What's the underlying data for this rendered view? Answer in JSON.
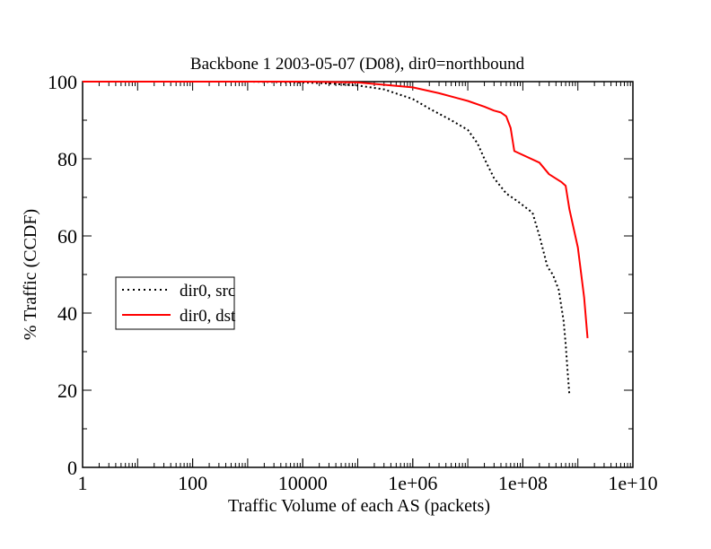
{
  "chart_data": {
    "type": "line",
    "title": "Backbone 1 2003-05-07 (D08), dir0=northbound",
    "xlabel": "Traffic Volume of each AS (packets)",
    "ylabel": "% Traffic (CCDF)",
    "xscale": "log",
    "xlim": [
      1,
      10000000000
    ],
    "ylim": [
      0,
      100
    ],
    "x_ticks": [
      {
        "value": 1,
        "label": "1"
      },
      {
        "value": 100,
        "label": "100"
      },
      {
        "value": 10000,
        "label": "10000"
      },
      {
        "value": 1000000,
        "label": "1e+06"
      },
      {
        "value": 100000000,
        "label": "1e+08"
      },
      {
        "value": 10000000000,
        "label": "1e+10"
      }
    ],
    "y_ticks": [
      {
        "value": 0,
        "label": "0"
      },
      {
        "value": 20,
        "label": "20"
      },
      {
        "value": 40,
        "label": "40"
      },
      {
        "value": 60,
        "label": "60"
      },
      {
        "value": 80,
        "label": "80"
      },
      {
        "value": 100,
        "label": "100"
      }
    ],
    "grid": false,
    "legend_position": "left-middle",
    "series": [
      {
        "name": "dir0, src",
        "color": "#000000",
        "style": "dotted",
        "x": [
          1,
          1000,
          10000,
          30000,
          100000,
          300000,
          1000000,
          2000000,
          5000000,
          10000000,
          15000000,
          20000000,
          30000000,
          50000000,
          80000000,
          150000000,
          200000000,
          280000000,
          350000000,
          450000000,
          550000000,
          600000000,
          650000000,
          700000000
        ],
        "y": [
          100,
          100,
          99.8,
          99.5,
          99,
          98,
          95.5,
          93,
          90,
          87.5,
          84,
          80,
          75,
          71,
          69,
          66,
          60,
          52,
          50,
          46,
          38,
          32,
          25,
          19
        ]
      },
      {
        "name": "dir0, dst",
        "color": "#ff0000",
        "style": "solid",
        "x": [
          1,
          10000,
          100000,
          1000000,
          3000000,
          10000000,
          20000000,
          30000000,
          40000000,
          50000000,
          60000000,
          70000000,
          200000000,
          300000000,
          500000000,
          600000000,
          700000000,
          1000000000,
          1300000000,
          1500000000
        ],
        "y": [
          100,
          100,
          99.8,
          98.5,
          97,
          95,
          93.5,
          92.5,
          92,
          91,
          88,
          82,
          79,
          76,
          74,
          73,
          67,
          57,
          44,
          33.5
        ]
      }
    ]
  }
}
